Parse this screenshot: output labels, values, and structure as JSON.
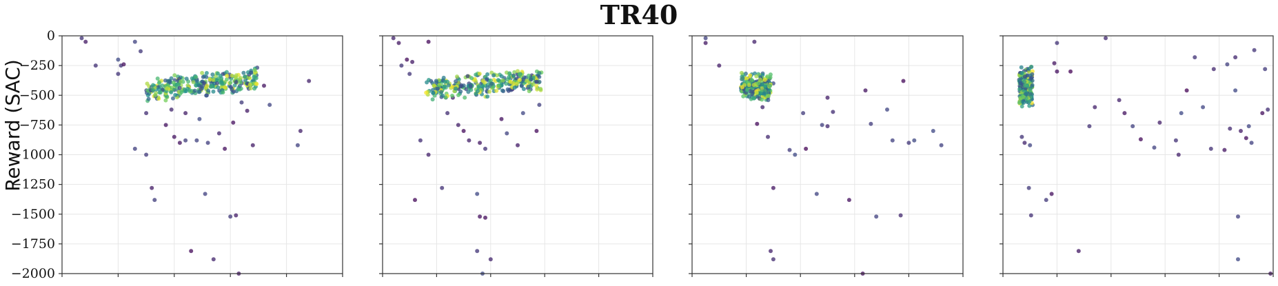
{
  "figure": {
    "title": "TR40",
    "ylabel": "Reward (SAC)"
  },
  "chart_data": {
    "type": "scatter",
    "panels": 4,
    "ylim": [
      -2000,
      0
    ],
    "yticks": [
      0,
      -250,
      -500,
      -750,
      -1000,
      -1250,
      -1500,
      -1750,
      -2000
    ],
    "ytick_labels": [
      "0",
      "−250",
      "−500",
      "−750",
      "−1000",
      "−1250",
      "−1500",
      "−1750",
      "−2000"
    ],
    "xlim": [
      0,
      5
    ],
    "xticks_count": 6,
    "x_tick_labels_visible": false,
    "grid": true,
    "colormap": [
      "#440154",
      "#3b528b",
      "#21918c",
      "#5ec962",
      "#fde725"
    ],
    "point_alpha": 0.75,
    "panel_points": [
      [
        [
          0.35,
          -20
        ],
        [
          0.42,
          -50
        ],
        [
          0.6,
          -250
        ],
        [
          1.0,
          -200
        ],
        [
          1.05,
          -250
        ],
        [
          1.0,
          -320
        ],
        [
          1.1,
          -240
        ],
        [
          1.3,
          -50
        ],
        [
          1.4,
          -130
        ],
        [
          1.3,
          -950
        ],
        [
          1.5,
          -1000
        ],
        [
          1.6,
          -1280
        ],
        [
          1.65,
          -1380
        ],
        [
          1.85,
          -750
        ],
        [
          1.5,
          -650
        ],
        [
          2.0,
          -850
        ],
        [
          2.1,
          -900
        ],
        [
          2.2,
          -880
        ],
        [
          2.4,
          -880
        ],
        [
          2.55,
          -1330
        ],
        [
          2.3,
          -1810
        ],
        [
          2.7,
          -1880
        ],
        [
          3.0,
          -1520
        ],
        [
          3.1,
          -1510
        ],
        [
          3.15,
          -2000
        ],
        [
          3.4,
          -920
        ],
        [
          3.7,
          -580
        ],
        [
          4.2,
          -920
        ],
        [
          4.25,
          -800
        ],
        [
          4.4,
          -380
        ],
        [
          2.6,
          -900
        ],
        [
          2.9,
          -950
        ],
        [
          3.05,
          -730
        ],
        [
          3.3,
          -630
        ],
        [
          2.2,
          -650
        ],
        [
          1.95,
          -620
        ],
        [
          2.45,
          -700
        ],
        [
          2.8,
          -820
        ],
        [
          3.2,
          -560
        ],
        [
          3.6,
          -420
        ]
      ],
      [
        [
          0.2,
          -20
        ],
        [
          0.3,
          -60
        ],
        [
          0.35,
          -250
        ],
        [
          0.45,
          -200
        ],
        [
          0.5,
          -320
        ],
        [
          0.55,
          -220
        ],
        [
          0.7,
          -880
        ],
        [
          0.85,
          -1000
        ],
        [
          0.6,
          -1380
        ],
        [
          1.1,
          -1280
        ],
        [
          1.3,
          -520
        ],
        [
          1.2,
          -650
        ],
        [
          1.4,
          -750
        ],
        [
          1.5,
          -800
        ],
        [
          1.6,
          -880
        ],
        [
          1.8,
          -900
        ],
        [
          1.9,
          -950
        ],
        [
          1.75,
          -1330
        ],
        [
          1.8,
          -1520
        ],
        [
          1.9,
          -1530
        ],
        [
          1.75,
          -1810
        ],
        [
          2.0,
          -1880
        ],
        [
          1.85,
          -2000
        ],
        [
          2.5,
          -920
        ],
        [
          2.85,
          -800
        ],
        [
          2.9,
          -580
        ],
        [
          0.85,
          -50
        ],
        [
          2.2,
          -700
        ],
        [
          2.6,
          -650
        ],
        [
          1.4,
          -400
        ],
        [
          2.4,
          -450
        ],
        [
          2.3,
          -820
        ]
      ],
      [
        [
          0.25,
          -20
        ],
        [
          0.25,
          -60
        ],
        [
          0.5,
          -250
        ],
        [
          1.15,
          -50
        ],
        [
          1.5,
          -400
        ],
        [
          1.4,
          -850
        ],
        [
          1.5,
          -1280
        ],
        [
          1.45,
          -1810
        ],
        [
          1.5,
          -1880
        ],
        [
          1.8,
          -960
        ],
        [
          1.9,
          -1000
        ],
        [
          2.05,
          -650
        ],
        [
          2.1,
          -950
        ],
        [
          2.3,
          -1330
        ],
        [
          2.4,
          -750
        ],
        [
          2.5,
          -760
        ],
        [
          2.5,
          -520
        ],
        [
          2.9,
          -1380
        ],
        [
          3.2,
          -460
        ],
        [
          3.3,
          -740
        ],
        [
          3.4,
          -1520
        ],
        [
          3.6,
          -620
        ],
        [
          3.7,
          -880
        ],
        [
          3.85,
          -1510
        ],
        [
          3.9,
          -380
        ],
        [
          4.0,
          -900
        ],
        [
          4.1,
          -880
        ],
        [
          4.45,
          -800
        ],
        [
          4.6,
          -920
        ],
        [
          3.15,
          -2000
        ],
        [
          2.6,
          -640
        ],
        [
          1.2,
          -740
        ],
        [
          1.3,
          -600
        ]
      ],
      [
        [
          0.45,
          -280
        ],
        [
          0.48,
          -1280
        ],
        [
          0.52,
          -1510
        ],
        [
          0.5,
          -920
        ],
        [
          0.35,
          -850
        ],
        [
          0.4,
          -900
        ],
        [
          0.8,
          -1380
        ],
        [
          0.9,
          -1330
        ],
        [
          0.95,
          -230
        ],
        [
          1.0,
          -300
        ],
        [
          1.0,
          -60
        ],
        [
          1.25,
          -300
        ],
        [
          1.4,
          -1810
        ],
        [
          1.6,
          -760
        ],
        [
          1.7,
          -600
        ],
        [
          1.9,
          -20
        ],
        [
          2.15,
          -540
        ],
        [
          2.25,
          -650
        ],
        [
          2.4,
          -760
        ],
        [
          2.55,
          -870
        ],
        [
          2.8,
          -940
        ],
        [
          2.9,
          -730
        ],
        [
          3.2,
          -880
        ],
        [
          3.25,
          -1000
        ],
        [
          3.3,
          -650
        ],
        [
          3.4,
          -460
        ],
        [
          3.55,
          -180
        ],
        [
          3.7,
          -600
        ],
        [
          3.85,
          -950
        ],
        [
          3.9,
          -280
        ],
        [
          4.1,
          -960
        ],
        [
          4.2,
          -780
        ],
        [
          4.3,
          -460
        ],
        [
          4.35,
          -1520
        ],
        [
          4.35,
          -1880
        ],
        [
          4.4,
          -800
        ],
        [
          4.5,
          -860
        ],
        [
          4.55,
          -760
        ],
        [
          4.6,
          -900
        ],
        [
          4.8,
          -650
        ],
        [
          4.9,
          -620
        ],
        [
          4.95,
          -2000
        ],
        [
          4.65,
          -120
        ],
        [
          4.85,
          -280
        ],
        [
          4.3,
          -180
        ],
        [
          4.15,
          -240
        ]
      ]
    ],
    "panel_clusters": [
      {
        "x": [
          1.5,
          3.5
        ],
        "y": [
          -520,
          -300
        ],
        "n": 320
      },
      {
        "x": [
          0.8,
          2.95
        ],
        "y": [
          -520,
          -300
        ],
        "n": 300
      },
      {
        "x": [
          0.9,
          1.45
        ],
        "y": [
          -560,
          -300
        ],
        "n": 260
      },
      {
        "x": [
          0.3,
          0.55
        ],
        "y": [
          -600,
          -250
        ],
        "n": 200
      }
    ]
  }
}
